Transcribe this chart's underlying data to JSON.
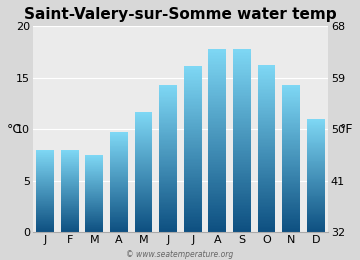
{
  "title": "Saint-Valery-sur-Somme water temp",
  "months": [
    "J",
    "F",
    "M",
    "A",
    "M",
    "J",
    "J",
    "A",
    "S",
    "O",
    "N",
    "D"
  ],
  "values_c": [
    8.0,
    8.0,
    7.5,
    9.7,
    11.7,
    14.3,
    16.1,
    17.8,
    17.8,
    16.2,
    14.3,
    11.0
  ],
  "ylabel_left": "°C",
  "ylabel_right": "°F",
  "yticks_c": [
    0,
    5,
    10,
    15,
    20
  ],
  "yticks_f": [
    32,
    41,
    50,
    59,
    68
  ],
  "ylim": [
    0,
    20
  ],
  "bar_color_top": "#7fd8f5",
  "bar_color_bottom": "#0d4f80",
  "background_color": "#d8d8d8",
  "plot_bg_color": "#ebebeb",
  "watermark": "© www.seatemperature.org",
  "title_fontsize": 11,
  "tick_fontsize": 8,
  "label_fontsize": 9
}
